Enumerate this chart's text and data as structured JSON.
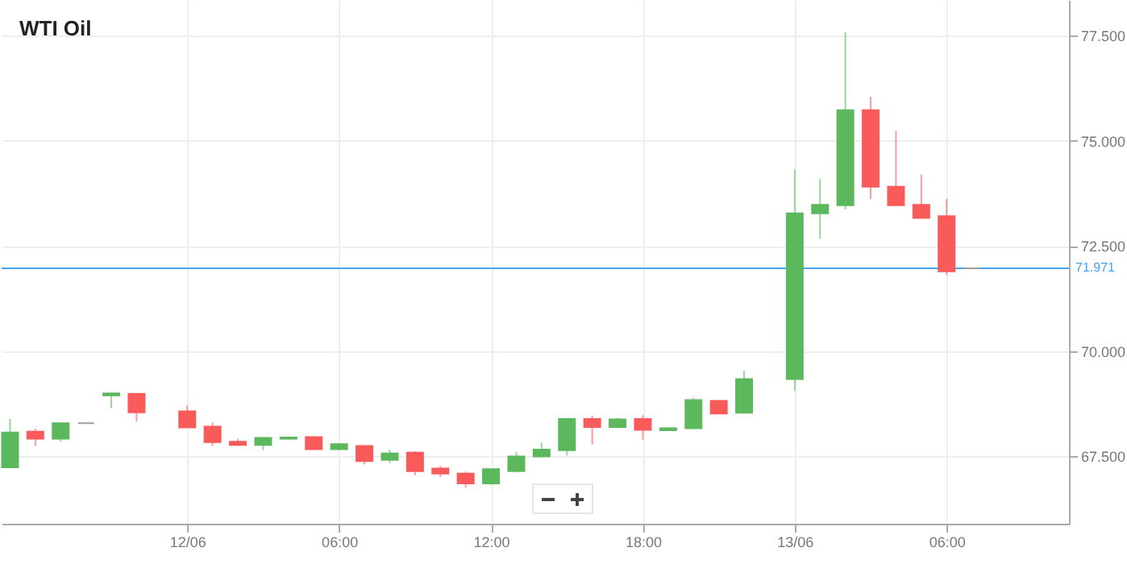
{
  "chart_data": {
    "type": "candlestick",
    "title": "WTI Oil",
    "x": [
      "--06-11T17:00",
      "--06-11T18:00",
      "--06-11T19:00",
      "--06-11T20:00",
      "--06-11T21:00",
      "--06-11T22:00",
      "--06-12T00:00",
      "--06-12T01:00",
      "--06-12T02:00",
      "--06-12T03:00",
      "--06-12T04:00",
      "--06-12T05:00",
      "--06-12T06:00",
      "--06-12T07:00",
      "--06-12T08:00",
      "--06-12T09:00",
      "--06-12T10:00",
      "--06-12T11:00",
      "--06-12T12:00",
      "--06-12T13:00",
      "--06-12T14:00",
      "--06-12T15:00",
      "--06-12T16:00",
      "--06-12T17:00",
      "--06-12T18:00",
      "--06-12T19:00",
      "--06-12T20:00",
      "--06-12T21:00",
      "--06-12T22:00",
      "--06-13T00:00",
      "--06-13T01:00",
      "--06-13T02:00",
      "--06-13T03:00",
      "--06-13T04:00",
      "--06-13T05:00",
      "--06-13T06:00",
      "--06-13T07:00"
    ],
    "ohlc": [
      [
        67.24,
        68.39,
        67.24,
        68.07
      ],
      [
        68.09,
        68.16,
        67.75,
        67.92
      ],
      [
        67.92,
        68.29,
        67.85,
        68.29
      ],
      [
        68.29,
        68.29,
        68.29,
        68.29
      ],
      [
        68.95,
        69.0,
        68.65,
        69.0
      ],
      [
        68.99,
        69.0,
        68.33,
        68.55
      ],
      [
        68.57,
        68.71,
        68.19,
        68.19
      ],
      [
        68.21,
        68.31,
        67.75,
        67.84
      ],
      [
        67.85,
        67.92,
        67.75,
        67.77
      ],
      [
        67.77,
        67.96,
        67.65,
        67.94
      ],
      [
        67.92,
        67.98,
        67.9,
        67.95
      ],
      [
        67.96,
        67.98,
        67.67,
        67.67
      ],
      [
        67.67,
        67.82,
        67.65,
        67.79
      ],
      [
        67.75,
        67.77,
        67.31,
        67.39
      ],
      [
        67.42,
        67.66,
        67.34,
        67.57
      ],
      [
        67.59,
        67.62,
        67.05,
        67.15
      ],
      [
        67.21,
        67.27,
        67.01,
        67.09
      ],
      [
        67.09,
        67.14,
        66.76,
        66.86
      ],
      [
        66.86,
        67.2,
        66.82,
        67.2
      ],
      [
        67.15,
        67.61,
        67.12,
        67.5
      ],
      [
        67.5,
        67.83,
        67.48,
        67.66
      ],
      [
        67.65,
        68.4,
        67.52,
        68.39
      ],
      [
        68.39,
        68.47,
        67.78,
        68.2
      ],
      [
        68.2,
        68.42,
        68.17,
        68.38
      ],
      [
        68.39,
        68.48,
        67.9,
        68.13
      ],
      [
        68.12,
        68.19,
        68.1,
        68.17
      ],
      [
        68.17,
        68.9,
        68.15,
        68.84
      ],
      [
        68.82,
        68.84,
        68.5,
        68.52
      ],
      [
        68.54,
        69.54,
        68.52,
        69.34
      ],
      [
        69.34,
        74.32,
        69.05,
        73.28
      ],
      [
        73.28,
        74.09,
        72.67,
        73.48
      ],
      [
        73.47,
        77.58,
        73.37,
        75.73
      ],
      [
        75.73,
        76.05,
        73.62,
        73.91
      ],
      [
        73.91,
        75.24,
        73.47,
        73.47
      ],
      [
        73.48,
        74.2,
        73.17,
        73.17
      ],
      [
        73.21,
        73.62,
        71.81,
        71.9
      ],
      [
        71.97,
        71.97,
        71.97,
        71.97
      ]
    ],
    "colors": [
      "#5cb85c",
      "#f95a5a",
      "#5cb85c",
      "#9e9e9e",
      "#5cb85c",
      "#f95a5a",
      "#f95a5a",
      "#f95a5a",
      "#f95a5a",
      "#5cb85c",
      "#5cb85c",
      "#f95a5a",
      "#5cb85c",
      "#f95a5a",
      "#5cb85c",
      "#f95a5a",
      "#f95a5a",
      "#f95a5a",
      "#5cb85c",
      "#5cb85c",
      "#5cb85c",
      "#5cb85c",
      "#f95a5a",
      "#5cb85c",
      "#f95a5a",
      "#5cb85c",
      "#5cb85c",
      "#f95a5a",
      "#5cb85c",
      "#5cb85c",
      "#5cb85c",
      "#5cb85c",
      "#f95a5a",
      "#f95a5a",
      "#f95a5a",
      "#f95a5a",
      "#9e9e9e"
    ],
    "xlim": [
      "--06-11T16:40",
      "--06-13T10:50"
    ],
    "xticks": [
      {
        "value": "--06-12T00:00",
        "label": "12/06"
      },
      {
        "value": "--06-12T06:00",
        "label": "06:00"
      },
      {
        "value": "--06-12T12:00",
        "label": "12:00"
      },
      {
        "value": "--06-12T18:00",
        "label": "18:00"
      },
      {
        "value": "--06-13T00:00",
        "label": "13/06"
      },
      {
        "value": "--06-13T06:00",
        "label": "06:00"
      }
    ],
    "ylim": [
      65.9,
      78.35
    ],
    "yticks": [
      {
        "value": 67.5,
        "label": "67.500"
      },
      {
        "value": 70,
        "label": "70.000"
      },
      {
        "value": 72.5,
        "label": "72.500"
      },
      {
        "value": 75,
        "label": "75.000"
      },
      {
        "value": 77.5,
        "label": "77.500"
      }
    ],
    "grid": true,
    "ref_lines": [
      {
        "axis": "y",
        "value": 71.971,
        "label": "71.971",
        "color": "#42a5f5"
      }
    ]
  }
}
